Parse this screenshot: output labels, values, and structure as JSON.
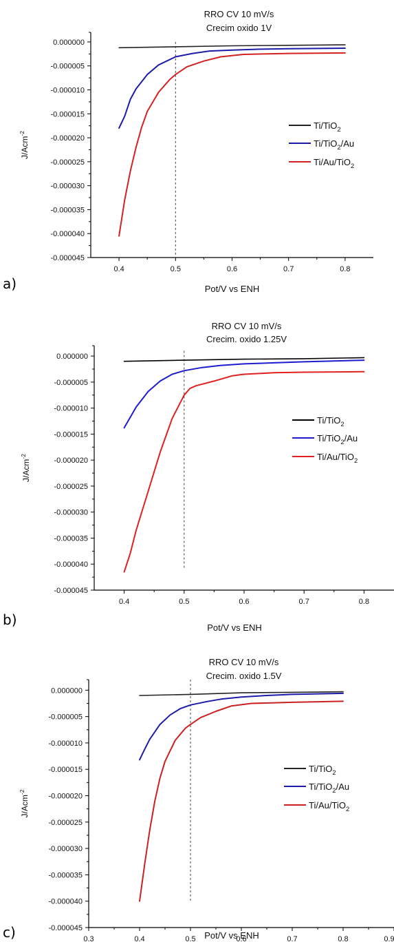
{
  "chart_data": [
    {
      "panel": "a)",
      "type": "line",
      "title": [
        "RRO  CV 10 mV/s",
        "Crecim oxido 1V"
      ],
      "xlabel": "Pot/V vs ENH",
      "ylabel": "J/Acm-2",
      "xlim": [
        0.35,
        0.85
      ],
      "ylim": [
        -4.5e-05,
        2e-06
      ],
      "xticks": [
        "0.4",
        "0.5",
        "0.6",
        "0.7",
        "0.8"
      ],
      "yticks": [
        "0.000000",
        "-0.000005",
        "-0.000010",
        "-0.000015",
        "-0.000020",
        "-0.000025",
        "-0.000030",
        "-0.000035",
        "-0.000040",
        "-0.000045"
      ],
      "guide_x": 0.5,
      "guide_y_range": [
        -4.45e-05,
        0.0
      ],
      "legend_position": "right",
      "series": [
        {
          "name": "Ti/TiO2",
          "color": "#222222",
          "x": [
            0.4,
            0.5,
            0.6,
            0.7,
            0.8
          ],
          "y": [
            -1.2e-06,
            -1e-06,
            -8e-07,
            -7e-07,
            -6e-07
          ]
        },
        {
          "name": "Ti/TiO2/Au",
          "color": "#1c1ca8",
          "x": [
            0.4,
            0.41,
            0.42,
            0.43,
            0.45,
            0.47,
            0.5,
            0.53,
            0.56,
            0.6,
            0.65,
            0.7,
            0.8
          ],
          "y": [
            -1.8e-05,
            -1.55e-05,
            -1.2e-05,
            -9.8e-06,
            -6.8e-06,
            -4.8e-06,
            -3.1e-06,
            -2.4e-06,
            -1.9e-06,
            -1.7e-06,
            -1.5e-06,
            -1.4e-06,
            -1.3e-06
          ]
        },
        {
          "name": "Ti/Au/TiO2",
          "color": "#d42020",
          "x": [
            0.4,
            0.41,
            0.42,
            0.43,
            0.44,
            0.45,
            0.47,
            0.49,
            0.5,
            0.52,
            0.55,
            0.58,
            0.62,
            0.7,
            0.8
          ],
          "y": [
            -4.05e-05,
            -3.3e-05,
            -2.7e-05,
            -2.2e-05,
            -1.78e-05,
            -1.45e-05,
            -1.05e-05,
            -7.8e-06,
            -6.8e-06,
            -5.2e-06,
            -4e-06,
            -3.1e-06,
            -2.6e-06,
            -2.4e-06,
            -2.3e-06
          ]
        }
      ]
    },
    {
      "panel": "b)",
      "type": "line",
      "title": [
        "RRO  CV 10 mV/s",
        "Crecim. oxido 1.25V"
      ],
      "xlabel": "Pot/V vs ENH",
      "ylabel": "J/Acm-2",
      "xlim": [
        0.35,
        0.85
      ],
      "ylim": [
        -4.5e-05,
        2e-06
      ],
      "xticks": [
        "0.4",
        "0.5",
        "0.6",
        "0.7",
        "0.8"
      ],
      "yticks": [
        "0.000000",
        "-0.000005",
        "-0.000010",
        "-0.000015",
        "-0.000020",
        "-0.000025",
        "-0.000030",
        "-0.000035",
        "-0.000040",
        "-0.000045"
      ],
      "guide_x": 0.5,
      "guide_y_range": [
        -4.1e-05,
        1e-06
      ],
      "legend_position": "right",
      "series": [
        {
          "name": "Ti/TiO2",
          "color": "#000000",
          "x": [
            0.4,
            0.5,
            0.6,
            0.7,
            0.8
          ],
          "y": [
            -1e-06,
            -8e-07,
            -6e-07,
            -5e-07,
            -3e-07
          ]
        },
        {
          "name": "Ti/TiO2/Au",
          "color": "#1c1ccf",
          "x": [
            0.4,
            0.41,
            0.42,
            0.44,
            0.46,
            0.48,
            0.5,
            0.53,
            0.56,
            0.6,
            0.65,
            0.7,
            0.8
          ],
          "y": [
            -1.38e-05,
            -1.18e-05,
            -9.8e-06,
            -6.8e-06,
            -4.8e-06,
            -3.5e-06,
            -2.8e-06,
            -2.2e-06,
            -1.8e-06,
            -1.5e-06,
            -1.3e-06,
            -1.1e-06,
            -8e-07
          ]
        },
        {
          "name": "Ti/Au/TiO2",
          "color": "#e02020",
          "x": [
            0.4,
            0.41,
            0.42,
            0.44,
            0.46,
            0.48,
            0.5,
            0.51,
            0.52,
            0.55,
            0.58,
            0.6,
            0.65,
            0.7,
            0.8
          ],
          "y": [
            -4.15e-05,
            -3.8e-05,
            -3.35e-05,
            -2.6e-05,
            -1.85e-05,
            -1.2e-05,
            -7.5e-06,
            -6.2e-06,
            -5.7e-06,
            -4.8e-06,
            -3.8e-06,
            -3.5e-06,
            -3.2e-06,
            -3.1e-06,
            -3e-06
          ]
        }
      ]
    },
    {
      "panel": "c)",
      "type": "line",
      "title": [
        "RRO  CV 10 mV/s",
        "Crecim. oxido 1.5V"
      ],
      "xlabel": "Pot/V vs ENH",
      "ylabel": "J/Acm-2",
      "xlim": [
        0.3,
        0.9
      ],
      "ylim": [
        -4.5e-05,
        2e-06
      ],
      "xticks": [
        "0.3",
        "0.4",
        "0.5",
        "0.6",
        "0.7",
        "0.8",
        "0.9"
      ],
      "yticks": [
        "0.000000",
        "-0.000005",
        "-0.000010",
        "-0.000015",
        "-0.000020",
        "-0.000025",
        "-0.000030",
        "-0.000035",
        "-0.000040",
        "-0.000045"
      ],
      "guide_x": 0.5,
      "guide_y_range": [
        -4e-05,
        2e-06
      ],
      "legend_position": "right",
      "series": [
        {
          "name": "Ti/TiO2",
          "color": "#222222",
          "x": [
            0.4,
            0.5,
            0.6,
            0.7,
            0.8
          ],
          "y": [
            -1e-06,
            -8e-07,
            -5e-07,
            -4e-07,
            -3e-07
          ]
        },
        {
          "name": "Ti/TiO2/Au",
          "color": "#1c1ca8",
          "x": [
            0.4,
            0.41,
            0.42,
            0.44,
            0.46,
            0.48,
            0.5,
            0.53,
            0.56,
            0.6,
            0.65,
            0.7,
            0.8
          ],
          "y": [
            -1.32e-05,
            -1.12e-05,
            -9.3e-06,
            -6.5e-06,
            -4.7e-06,
            -3.5e-06,
            -2.8e-06,
            -2.2e-06,
            -1.7e-06,
            -1.3e-06,
            -1e-06,
            -8e-07,
            -6e-07
          ]
        },
        {
          "name": "Ti/Au/TiO2",
          "color": "#cc2020",
          "x": [
            0.4,
            0.41,
            0.42,
            0.43,
            0.44,
            0.45,
            0.47,
            0.49,
            0.5,
            0.52,
            0.55,
            0.58,
            0.62,
            0.7,
            0.8
          ],
          "y": [
            -4e-05,
            -3.3e-05,
            -2.65e-05,
            -2.1e-05,
            -1.67e-05,
            -1.35e-05,
            -9.5e-06,
            -7.2e-06,
            -6.5e-06,
            -5.2e-06,
            -4e-06,
            -3e-06,
            -2.5e-06,
            -2.3e-06,
            -2.1e-06
          ]
        }
      ]
    }
  ]
}
